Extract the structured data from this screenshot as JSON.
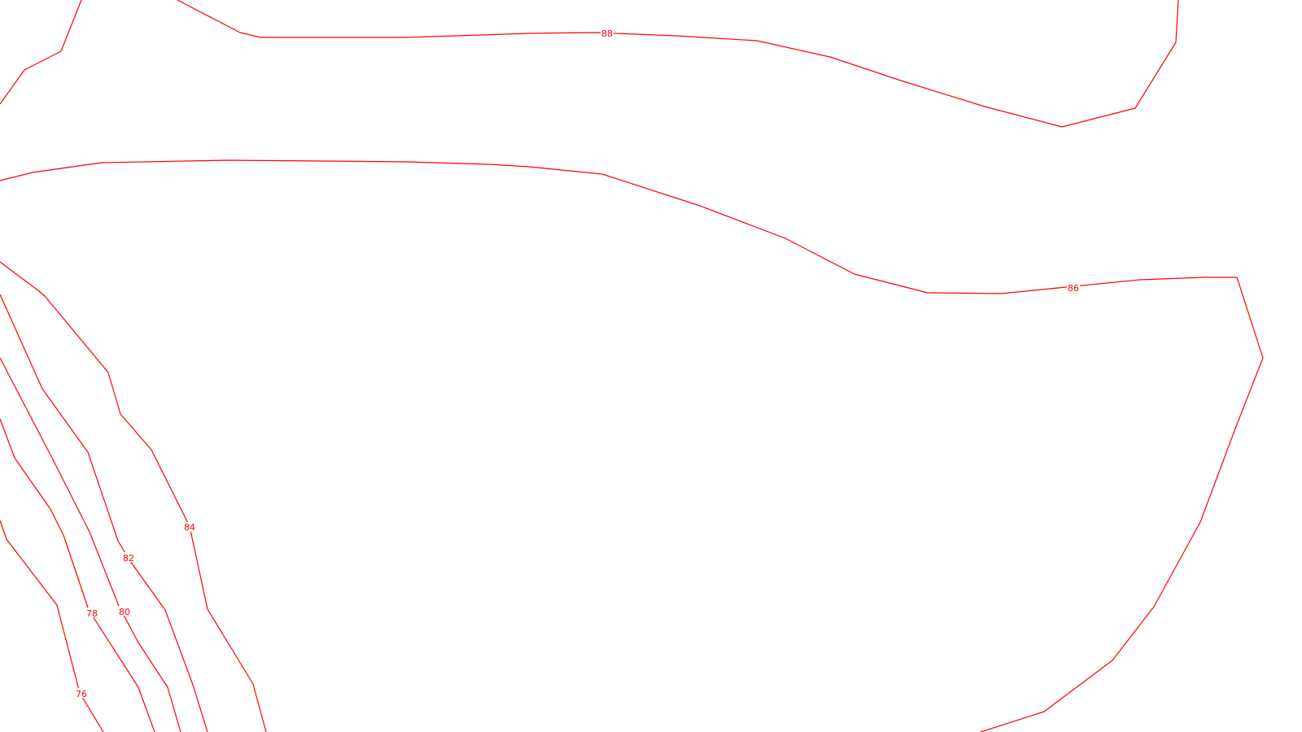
{
  "map": {
    "line_color": "#ff0000",
    "background_color": "#ffffff",
    "contours": [
      {
        "elevation": 88,
        "label": "88"
      },
      {
        "elevation": 86,
        "label": "86"
      },
      {
        "elevation": 84,
        "label": "84"
      },
      {
        "elevation": 82,
        "label": "82"
      },
      {
        "elevation": 80,
        "label": "80"
      },
      {
        "elevation": 78,
        "label": "78"
      },
      {
        "elevation": 76,
        "label": "76"
      }
    ]
  }
}
